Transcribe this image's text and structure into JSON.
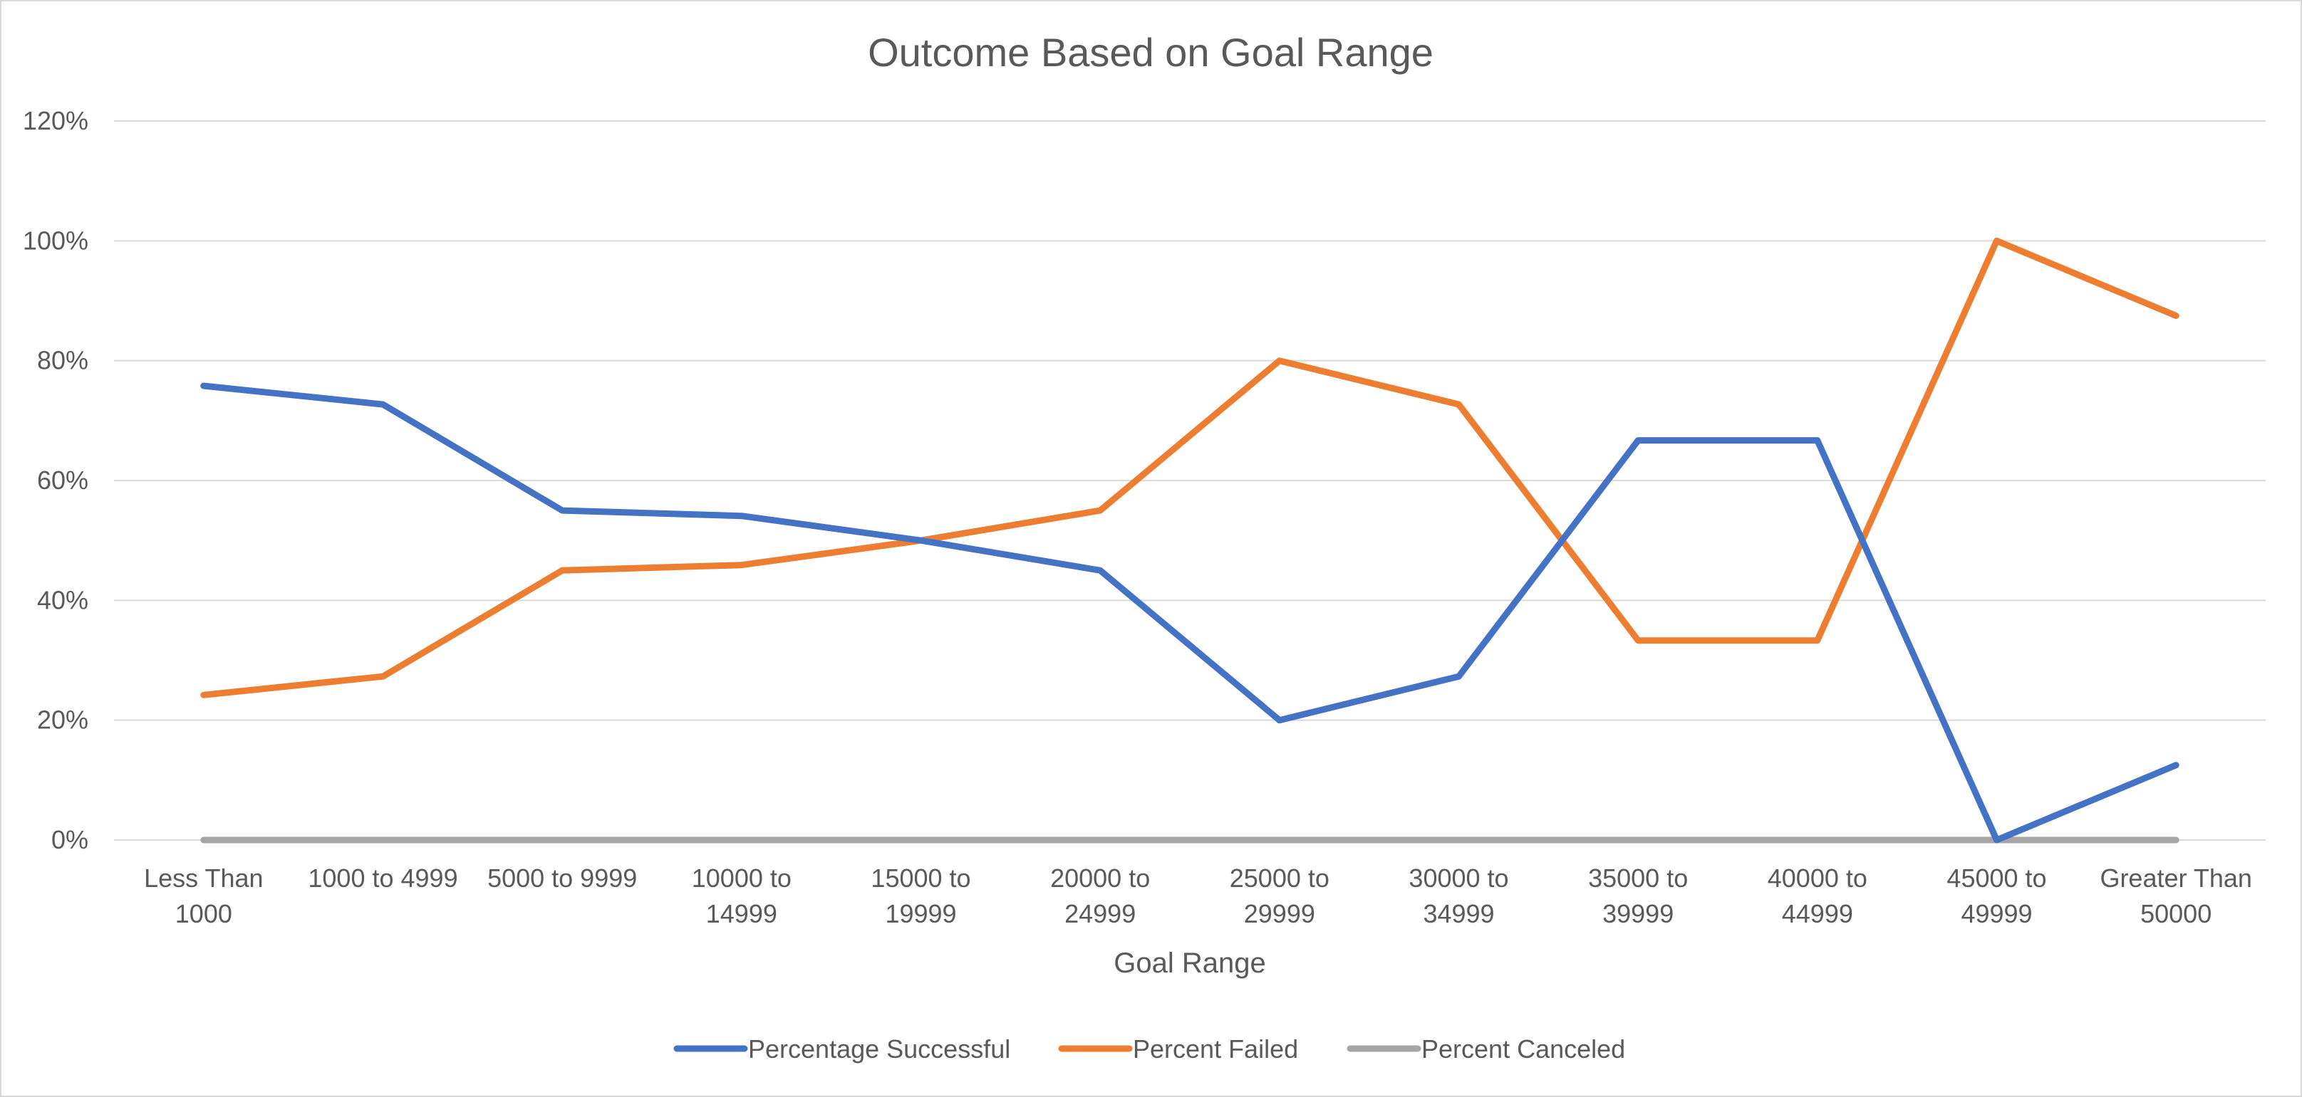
{
  "chart_data": {
    "type": "line",
    "title": "Outcome Based on Goal Range",
    "xlabel": "Goal Range",
    "ylabel": "",
    "ylim": [
      0,
      1.2
    ],
    "ytick_step": 0.2,
    "ytick_format": "percent",
    "grid": true,
    "legend_position": "bottom",
    "categories": [
      [
        "Less Than",
        "1000"
      ],
      [
        "1000 to 4999"
      ],
      [
        "5000 to 9999"
      ],
      [
        "10000 to",
        "14999"
      ],
      [
        "15000 to",
        "19999"
      ],
      [
        "20000 to",
        "24999"
      ],
      [
        "25000 to",
        "29999"
      ],
      [
        "30000 to",
        "34999"
      ],
      [
        "35000 to",
        "39999"
      ],
      [
        "40000 to",
        "44999"
      ],
      [
        "45000 to",
        "49999"
      ],
      [
        "Greater Than",
        "50000"
      ]
    ],
    "series": [
      {
        "name": "Percentage Successful",
        "color": "#4472c4",
        "values": [
          0.758,
          0.727,
          0.55,
          0.541,
          0.5,
          0.45,
          0.2,
          0.273,
          0.667,
          0.667,
          0.0,
          0.125
        ]
      },
      {
        "name": "Percent Failed",
        "color": "#ed7d31",
        "values": [
          0.242,
          0.273,
          0.45,
          0.459,
          0.5,
          0.55,
          0.8,
          0.727,
          0.333,
          0.333,
          1.0,
          0.875
        ]
      },
      {
        "name": "Percent Canceled",
        "color": "#a5a5a5",
        "values": [
          0,
          0,
          0,
          0,
          0,
          0,
          0,
          0,
          0,
          0,
          0,
          0
        ]
      }
    ]
  }
}
